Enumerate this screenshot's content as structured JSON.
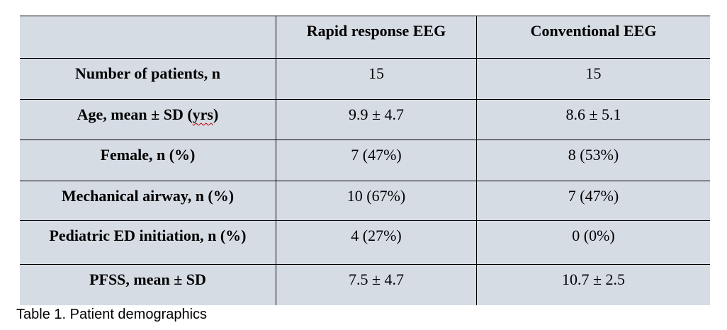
{
  "table": {
    "columns": [
      "",
      "Rapid response EEG",
      "Conventional EEG"
    ],
    "rows": [
      {
        "label": "Number of patients, n",
        "rapid": "15",
        "conventional": "15"
      },
      {
        "label_pre": "Age, mean ± SD (",
        "label_misspelled": "yrs",
        "label_post": ")",
        "rapid": "9.9 ± 4.7",
        "conventional": "8.6 ± 5.1"
      },
      {
        "label": "Female, n (%)",
        "rapid": "7 (47%)",
        "conventional": "8 (53%)"
      },
      {
        "label": "Mechanical airway, n (%)",
        "rapid": "10 (67%)",
        "conventional": "7 (47%)"
      },
      {
        "label": "Pediatric ED initiation, n (%)",
        "rapid": "4 (27%)",
        "conventional": "0 (0%)"
      },
      {
        "label": "PFSS, mean ± SD",
        "rapid": "7.5 ± 4.7",
        "conventional": "10.7 ± 2.5"
      }
    ]
  },
  "caption": "Table 1. Patient demographics",
  "colors": {
    "cell_background": "#d6dce4",
    "border": "#000000",
    "spellcheck_underline": "#c00000"
  }
}
